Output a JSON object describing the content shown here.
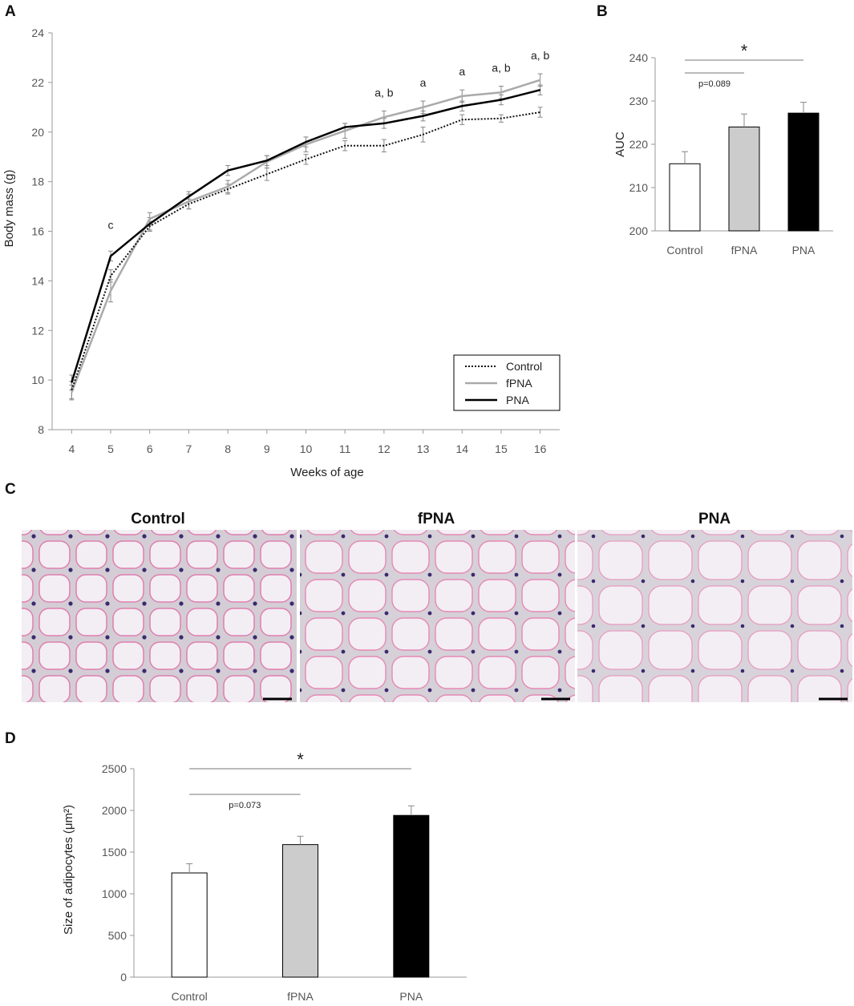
{
  "panels": {
    "a": "A",
    "b": "B",
    "c": "C",
    "d": "D"
  },
  "chart_data": [
    {
      "id": "A",
      "type": "line",
      "xlabel": "Weeks of age",
      "ylabel": "Body mass (g)",
      "x": [
        4,
        5,
        6,
        7,
        8,
        9,
        10,
        11,
        12,
        13,
        14,
        15,
        16
      ],
      "xlim": [
        3.5,
        16.5
      ],
      "ylim": [
        8,
        24
      ],
      "yticks": [
        8,
        10,
        12,
        14,
        16,
        18,
        20,
        22,
        24
      ],
      "series": [
        {
          "name": "Control",
          "style": "dotted",
          "color": "#111111",
          "values": [
            9.6,
            14.2,
            16.2,
            17.1,
            17.7,
            18.3,
            18.9,
            19.45,
            19.45,
            19.9,
            20.5,
            20.55,
            20.8
          ],
          "errors": [
            0.35,
            0.25,
            0.2,
            0.2,
            0.2,
            0.25,
            0.2,
            0.2,
            0.25,
            0.3,
            0.2,
            0.15,
            0.2
          ]
        },
        {
          "name": "fPNA",
          "style": "solid",
          "color": "#aaaaaa",
          "values": [
            9.5,
            13.6,
            16.5,
            17.2,
            17.8,
            18.8,
            19.5,
            20.05,
            20.6,
            21.0,
            21.45,
            21.6,
            22.1
          ],
          "errors": [
            0.3,
            0.45,
            0.25,
            0.3,
            0.25,
            0.25,
            0.3,
            0.3,
            0.25,
            0.25,
            0.25,
            0.25,
            0.25
          ]
        },
        {
          "name": "PNA",
          "style": "solid",
          "color": "#000000",
          "values": [
            9.9,
            15.0,
            16.3,
            17.4,
            18.45,
            18.85,
            19.6,
            20.2,
            20.35,
            20.65,
            21.05,
            21.3,
            21.7
          ],
          "errors": [
            0.3,
            0.2,
            0.25,
            0.2,
            0.2,
            0.2,
            0.2,
            0.15,
            0.2,
            0.2,
            0.2,
            0.2,
            0.2
          ]
        }
      ],
      "annotations": [
        {
          "x": 5,
          "text": "c"
        },
        {
          "x": 12,
          "text": "a, b"
        },
        {
          "x": 13,
          "text": "a"
        },
        {
          "x": 14,
          "text": "a"
        },
        {
          "x": 15,
          "text": "a, b"
        },
        {
          "x": 16,
          "text": "a, b"
        }
      ],
      "legend": "bottom-right"
    },
    {
      "id": "B",
      "type": "bar",
      "ylabel": "AUC",
      "categories": [
        "Control",
        "fPNA",
        "PNA"
      ],
      "values": [
        215.5,
        224.0,
        227.2
      ],
      "errors": [
        2.8,
        3.0,
        2.5
      ],
      "colors": [
        "#ffffff",
        "#cccccc",
        "#000000"
      ],
      "ylim": [
        200,
        240
      ],
      "yticks": [
        200,
        210,
        220,
        230,
        240
      ],
      "comparisons": [
        {
          "from": "Control",
          "to": "PNA",
          "label": "*"
        },
        {
          "from": "Control",
          "to": "fPNA",
          "label": "p=0.089"
        }
      ]
    },
    {
      "id": "D",
      "type": "bar",
      "ylabel": "Size of adipocytes (μm²)",
      "categories": [
        "Control",
        "fPNA",
        "PNA"
      ],
      "values": [
        1250,
        1590,
        1940
      ],
      "errors": [
        110,
        100,
        115
      ],
      "colors": [
        "#ffffff",
        "#cccccc",
        "#000000"
      ],
      "ylim": [
        0,
        2500
      ],
      "yticks": [
        0,
        500,
        1000,
        1500,
        2000,
        2500
      ],
      "comparisons": [
        {
          "from": "Control",
          "to": "PNA",
          "label": "*"
        },
        {
          "from": "Control",
          "to": "fPNA",
          "label": "p=0.073"
        }
      ]
    }
  ],
  "histology": {
    "titles": [
      "Control",
      "fPNA",
      "PNA"
    ]
  }
}
